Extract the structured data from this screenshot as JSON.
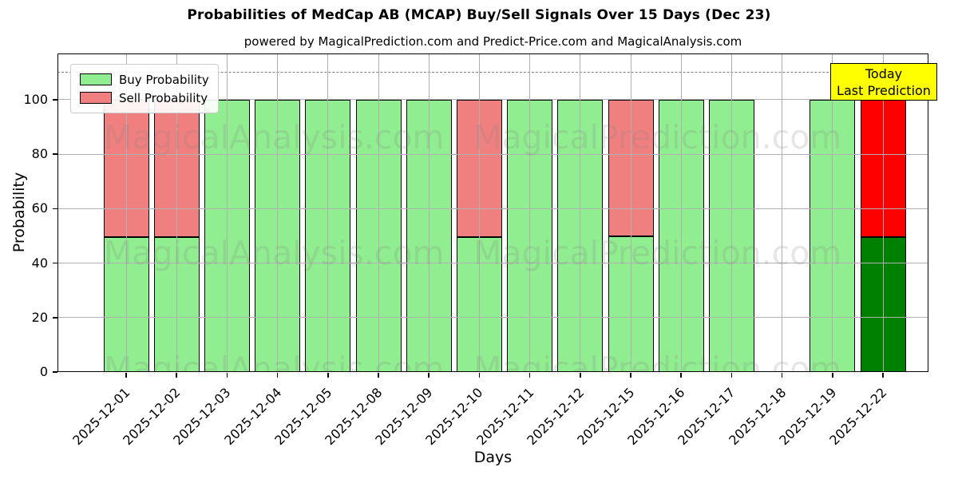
{
  "title": "Probabilities of MedCap AB (MCAP) Buy/Sell Signals Over 15 Days (Dec 23)",
  "subtitle": "powered by MagicalPrediction.com and Predict-Price.com and MagicalAnalysis.com",
  "legend": {
    "items": [
      {
        "label": "Buy Probability",
        "color": "#90EE90"
      },
      {
        "label": "Sell Probability",
        "color": "#F08080"
      }
    ]
  },
  "annotation": {
    "line1": "Today",
    "line2": "Last Prediction",
    "bg": "#FFFF00",
    "border": "#000000"
  },
  "watermarks": {
    "left": "MagicalAnalysis.com",
    "right": "MagicalPrediction.com"
  },
  "chart_data": {
    "type": "bar",
    "stacked": true,
    "title": "Probabilities of MedCap AB (MCAP) Buy/Sell Signals Over 15 Days (Dec 23)",
    "xlabel": "Days",
    "ylabel": "Probability",
    "ylim": [
      0,
      117
    ],
    "yticks": [
      0,
      20,
      40,
      60,
      80,
      100
    ],
    "grid": true,
    "dashed_hline": 110,
    "legend_position": "upper left",
    "categories": [
      "2025-12-01",
      "2025-12-02",
      "2025-12-03",
      "2025-12-04",
      "2025-12-05",
      "2025-12-08",
      "2025-12-09",
      "2025-12-10",
      "2025-12-11",
      "2025-12-12",
      "2025-12-15",
      "2025-12-16",
      "2025-12-17",
      "2025-12-18",
      "2025-12-19",
      "2025-12-22"
    ],
    "series": [
      {
        "name": "Buy Probability",
        "values": [
          49.5,
          49.5,
          100,
          100,
          100,
          100,
          100,
          49.5,
          100,
          100,
          50,
          100,
          100,
          0,
          100,
          49.5
        ]
      },
      {
        "name": "Sell Probability",
        "values": [
          50.5,
          50.5,
          0,
          0,
          0,
          0,
          0,
          50.5,
          0,
          0,
          50,
          0,
          0,
          0,
          0,
          50.5
        ]
      }
    ],
    "today_index": 15,
    "bar_colors": {
      "default": {
        "buy": "#90EE90",
        "sell": "#F08080"
      },
      "today": {
        "buy": "#008000",
        "sell": "#FF0000"
      },
      "edge": "#000000"
    }
  }
}
